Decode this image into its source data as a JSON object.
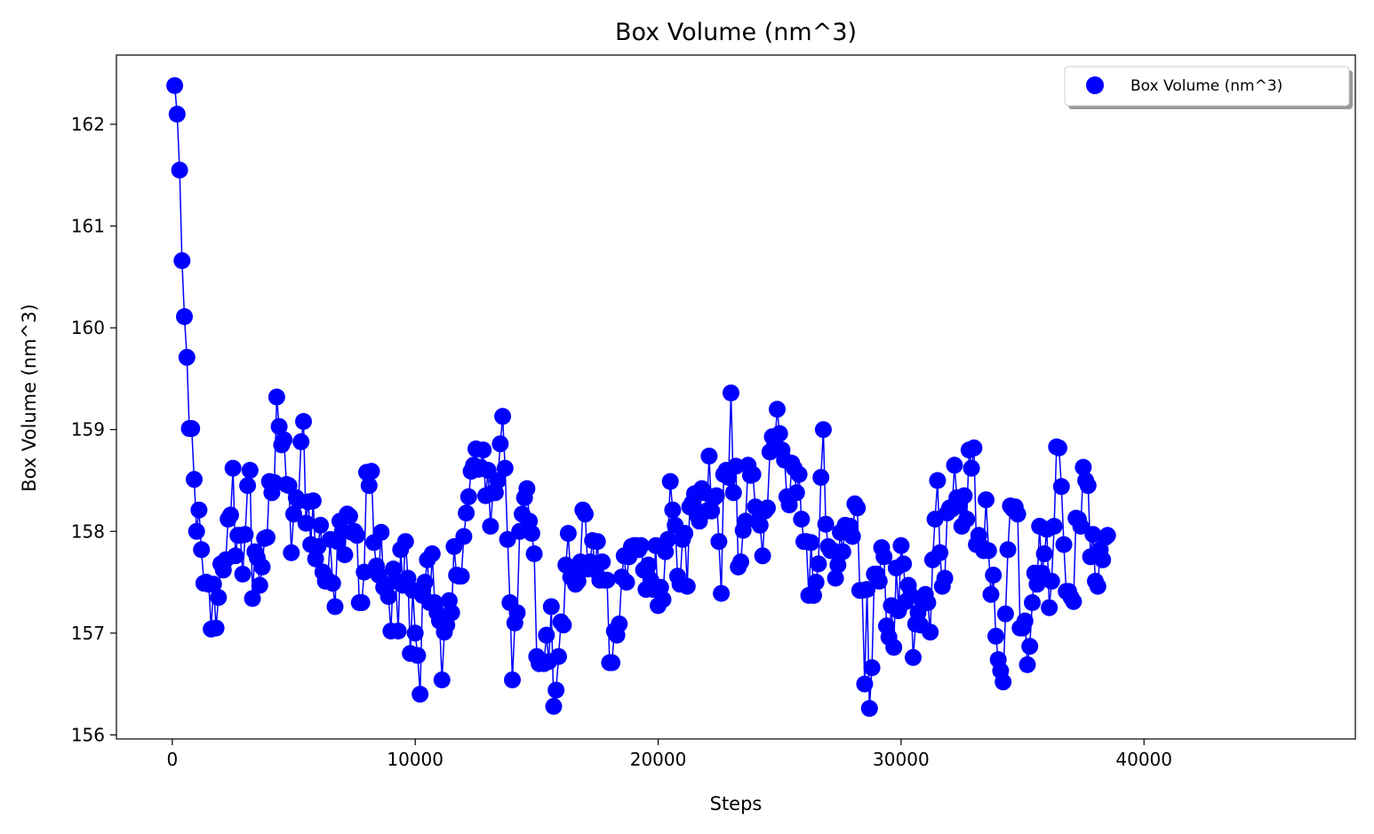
{
  "chart_data": {
    "type": "line",
    "title": "Box Volume (nm^3)",
    "xlabel": "Steps",
    "ylabel": "Box Volume (nm^3)",
    "xlim": [
      -2300,
      48700
    ],
    "ylim": [
      155.96,
      162.68
    ],
    "x_ticks": [
      0,
      10000,
      20000,
      30000,
      40000
    ],
    "y_ticks": [
      156,
      157,
      158,
      159,
      160,
      161,
      162
    ],
    "grid": false,
    "legend": {
      "position": "top-right",
      "entries": [
        "Box Volume (nm^3)"
      ]
    },
    "colors": {
      "series": "#0000ff",
      "axes": "#000000",
      "legend_border": "#cccccc"
    },
    "series": [
      {
        "name": "Box Volume (nm^3)",
        "marker": "circle",
        "x_start": 100,
        "x_step": 100,
        "values": [
          162.38,
          162.1,
          161.55,
          160.66,
          160.11,
          159.71,
          159.01,
          159.01,
          158.51,
          158.0,
          158.21,
          157.82,
          157.49,
          157.5,
          157.48,
          157.04,
          157.48,
          157.05,
          157.35,
          157.68,
          157.62,
          157.72,
          158.12,
          158.16,
          158.62,
          157.76,
          157.96,
          157.96,
          157.58,
          157.97,
          158.45,
          158.6,
          157.34,
          157.8,
          157.74,
          157.47,
          157.65,
          157.93,
          157.94,
          158.49,
          158.38,
          158.48,
          159.32,
          159.03,
          158.85,
          158.9,
          158.46,
          158.45,
          157.79,
          158.17,
          158.33,
          158.3,
          158.88,
          159.08,
          158.08,
          158.29,
          157.87,
          158.3,
          157.73,
          157.85,
          158.06,
          157.6,
          157.51,
          157.52,
          157.92,
          157.49,
          157.26,
          157.9,
          158.1,
          158.0,
          157.77,
          158.17,
          158.15,
          157.99,
          158.0,
          157.96,
          157.3,
          157.3,
          157.6,
          158.58,
          158.45,
          158.59,
          157.89,
          157.66,
          157.57,
          157.99,
          157.45,
          157.48,
          157.36,
          157.02,
          157.63,
          157.51,
          157.02,
          157.82,
          157.47,
          157.9,
          157.54,
          156.8,
          157.42,
          157.0,
          156.78,
          156.4,
          157.37,
          157.5,
          157.72,
          157.3,
          157.78,
          157.3,
          157.2,
          157.12,
          156.54,
          157.01,
          157.08,
          157.32,
          157.2,
          157.85,
          157.57,
          157.56,
          157.56,
          157.95,
          158.18,
          158.34,
          158.59,
          158.65,
          158.81,
          158.61,
          158.63,
          158.8,
          158.35,
          158.6,
          158.05,
          158.38,
          158.38,
          158.5,
          158.86,
          159.13,
          158.62,
          157.92,
          157.3,
          156.54,
          157.1,
          157.2,
          158.0,
          158.17,
          158.33,
          158.42,
          158.1,
          157.98,
          157.78,
          156.77,
          156.7,
          156.72,
          156.7,
          156.98,
          156.72,
          157.26,
          156.28,
          156.44,
          156.77,
          157.11,
          157.08,
          157.67,
          157.98,
          157.55,
          157.62,
          157.48,
          157.51,
          157.7,
          158.21,
          158.17,
          157.63,
          157.7,
          157.91,
          157.62,
          157.9,
          157.52,
          157.7,
          157.52,
          157.52,
          156.71,
          156.71,
          157.02,
          156.98,
          157.09,
          157.55,
          157.76,
          157.5,
          157.75,
          157.85,
          157.86,
          157.86,
          157.82,
          157.86,
          157.62,
          157.43,
          157.67,
          157.52,
          157.43,
          157.86,
          157.27,
          157.45,
          157.33,
          157.8,
          157.92,
          158.49,
          158.21,
          158.06,
          157.56,
          157.48,
          157.92,
          157.98,
          157.46,
          158.24,
          158.28,
          158.37,
          158.16,
          158.1,
          158.42,
          158.38,
          158.2,
          158.74,
          158.2,
          158.33,
          158.35,
          157.9,
          157.39,
          158.56,
          158.6,
          158.53,
          159.36,
          158.38,
          158.64,
          157.65,
          157.7,
          158.01,
          158.1,
          158.65,
          158.55,
          158.56,
          158.24,
          158.1,
          158.06,
          157.76,
          158.2,
          158.23,
          158.78,
          158.93,
          158.85,
          159.2,
          158.96,
          158.8,
          158.7,
          158.34,
          158.26,
          158.67,
          158.62,
          158.38,
          158.56,
          158.12,
          157.9,
          157.9,
          157.37,
          157.89,
          157.37,
          157.5,
          157.68,
          158.53,
          159.0,
          158.07,
          157.85,
          157.81,
          157.81,
          157.54,
          157.67,
          157.99,
          157.8,
          158.06,
          157.99,
          158.05,
          157.95,
          158.27,
          158.23,
          157.42,
          157.42,
          156.5,
          157.43,
          156.26,
          156.66,
          157.58,
          157.58,
          157.51,
          157.84,
          157.75,
          157.07,
          156.96,
          157.27,
          156.86,
          157.64,
          157.22,
          157.86,
          157.68,
          157.31,
          157.47,
          157.37,
          156.76,
          157.09,
          157.2,
          157.08,
          157.29,
          157.38,
          157.3,
          157.01,
          157.72,
          158.12,
          158.5,
          157.79,
          157.46,
          157.54,
          158.18,
          158.23,
          158.22,
          158.65,
          158.33,
          158.25,
          158.05,
          158.35,
          158.12,
          158.8,
          158.62,
          158.82,
          157.87,
          157.96,
          157.85,
          157.81,
          158.31,
          157.81,
          157.38,
          157.57,
          156.97,
          156.74,
          156.63,
          156.52,
          157.19,
          157.82,
          158.25,
          158.22,
          158.24,
          158.17,
          157.05,
          157.05,
          157.12,
          156.69,
          156.87,
          157.3,
          157.59,
          157.48,
          158.05,
          157.59,
          157.78,
          158.02,
          157.25,
          157.51,
          158.05,
          158.83,
          158.82,
          158.44,
          157.87,
          157.41,
          157.41,
          157.35,
          157.31,
          158.13,
          158.12,
          158.05,
          158.63,
          158.5,
          158.45,
          157.75,
          157.97,
          157.51,
          157.46,
          157.82,
          157.72,
          157.94,
          157.96
        ]
      }
    ]
  }
}
